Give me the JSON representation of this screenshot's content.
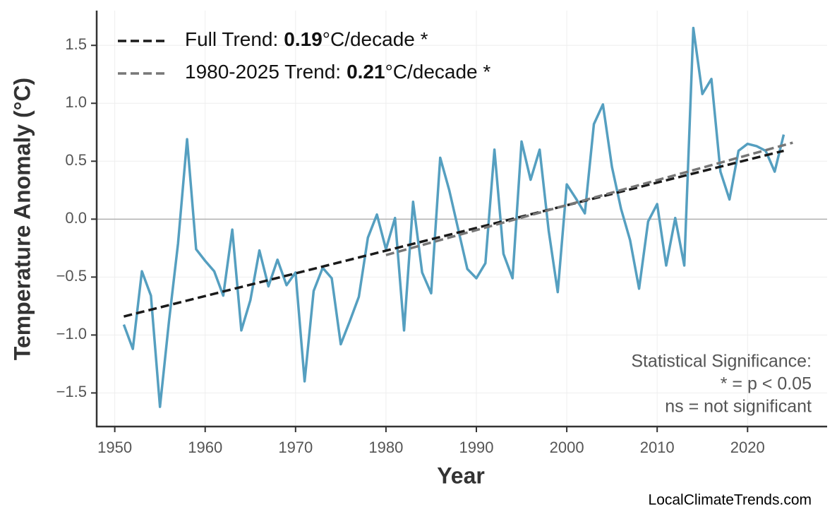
{
  "chart_data": {
    "type": "line",
    "xlabel": "Year",
    "ylabel": "Temperature Anomaly (°C)",
    "x": [
      1951,
      1952,
      1953,
      1954,
      1955,
      1956,
      1957,
      1958,
      1959,
      1960,
      1961,
      1962,
      1963,
      1964,
      1965,
      1966,
      1967,
      1968,
      1969,
      1970,
      1971,
      1972,
      1973,
      1974,
      1975,
      1976,
      1977,
      1978,
      1979,
      1980,
      1981,
      1982,
      1983,
      1984,
      1985,
      1986,
      1987,
      1988,
      1989,
      1990,
      1991,
      1992,
      1993,
      1994,
      1995,
      1996,
      1997,
      1998,
      1999,
      2000,
      2001,
      2002,
      2003,
      2004,
      2005,
      2006,
      2007,
      2008,
      2009,
      2010,
      2011,
      2012,
      2013,
      2014,
      2015,
      2016,
      2017,
      2018,
      2019,
      2020,
      2021,
      2022,
      2023,
      2024
    ],
    "series": [
      {
        "color": "#559fc0",
        "values": [
          -0.91,
          -1.12,
          -0.45,
          -0.66,
          -1.62,
          -0.88,
          -0.21,
          0.69,
          -0.26,
          -0.36,
          -0.45,
          -0.66,
          -0.09,
          -0.96,
          -0.7,
          -0.27,
          -0.58,
          -0.35,
          -0.57,
          -0.46,
          -1.4,
          -0.62,
          -0.42,
          -0.51,
          -1.08,
          -0.88,
          -0.67,
          -0.16,
          0.04,
          -0.26,
          0.01,
          -0.96,
          0.15,
          -0.46,
          -0.64,
          0.53,
          0.25,
          -0.09,
          -0.43,
          -0.51,
          -0.38,
          0.6,
          -0.3,
          -0.51,
          0.67,
          0.34,
          0.6,
          -0.1,
          -0.63,
          0.3,
          0.18,
          0.05,
          0.82,
          0.99,
          0.45,
          0.09,
          -0.18,
          -0.6,
          -0.02,
          0.13,
          -0.4,
          0.01,
          -0.4,
          1.65,
          1.08,
          1.21,
          0.41,
          0.17,
          0.59,
          0.65,
          0.63,
          0.59,
          0.41,
          0.73
        ]
      }
    ],
    "trend_lines": [
      {
        "name": "Full Trend:",
        "slope": 0.19,
        "unit": "°C/decade *",
        "color": "#1a1a1a",
        "x": [
          1951,
          2024
        ],
        "values": [
          -0.84,
          0.59
        ]
      },
      {
        "name": "1980-2025 Trend:",
        "slope": 0.21,
        "unit": "°C/decade *",
        "color": "#777777",
        "x": [
          1980,
          2025
        ],
        "values": [
          -0.31,
          0.66
        ]
      }
    ],
    "reference_line": 0,
    "xlim": [
      1948,
      2028.8
    ],
    "ylim": [
      -1.79,
      1.8
    ],
    "xticks": [
      1950,
      1960,
      1970,
      1980,
      1990,
      2000,
      2010,
      2020
    ],
    "yticks": [
      {
        "value": -1.5,
        "label": "−1.5"
      },
      {
        "value": -1.0,
        "label": "−1.0"
      },
      {
        "value": -0.5,
        "label": "−0.5"
      },
      {
        "value": 0,
        "label": "0.0"
      },
      0.5,
      {
        "value": 1.0,
        "label": "1.0"
      },
      1.5
    ],
    "grid": true,
    "legend_position": "upper left",
    "annotation": [
      "Statistical Significance:",
      "* = p < 0.05",
      "ns = not significant"
    ],
    "source": "LocalClimateTrends.com"
  }
}
